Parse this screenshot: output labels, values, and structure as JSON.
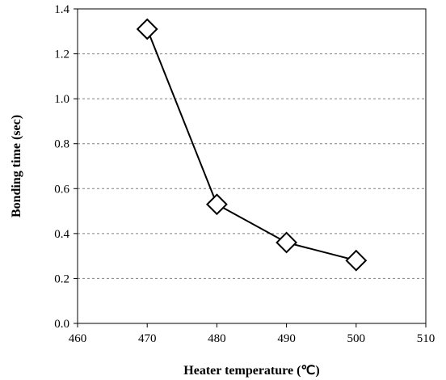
{
  "chart_data": {
    "type": "line",
    "title": "",
    "xlabel": "Heater temperature (℃)",
    "ylabel": "Bonding time (sec)",
    "xlim": [
      460,
      510
    ],
    "ylim": [
      0.0,
      1.4
    ],
    "x_ticks": [
      "460",
      "470",
      "480",
      "490",
      "500",
      "510"
    ],
    "y_ticks": [
      "0.0",
      "0.2",
      "0.4",
      "0.6",
      "0.8",
      "1.0",
      "1.2",
      "1.4"
    ],
    "grid": "horizontal dashed",
    "series": [
      {
        "marker": "diamond",
        "color": "#000000",
        "x": [
          470,
          480,
          490,
          500
        ],
        "y": [
          1.31,
          0.53,
          0.36,
          0.28
        ]
      }
    ]
  }
}
